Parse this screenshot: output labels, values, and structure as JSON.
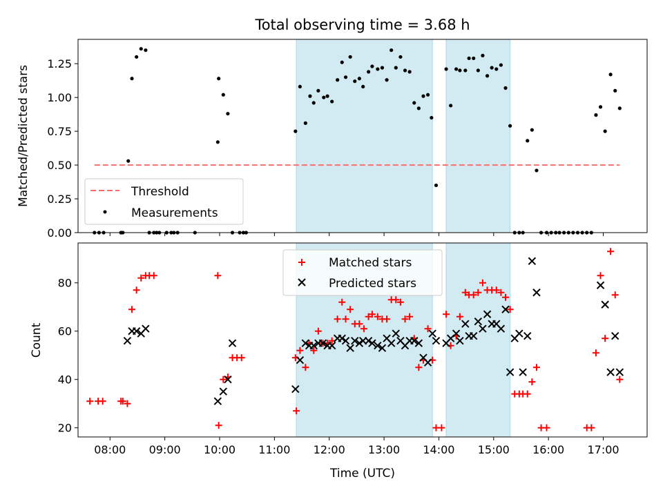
{
  "figure_title": "Total observing time = 3.68 h",
  "colors": {
    "shade": "#add8e6",
    "threshold": "#ff6b6b",
    "measurement": "#000000",
    "matched": "#ff0000",
    "predicted": "#000000"
  },
  "chart_data": [
    {
      "type": "scatter",
      "ylabel": "Matched/Predicted stars",
      "xlabel": "",
      "xlim": [
        "07:25",
        "17:48"
      ],
      "ylim": [
        0,
        1.43
      ],
      "yticks": [
        "0.00",
        "0.25",
        "0.50",
        "0.75",
        "1.00",
        "1.25"
      ],
      "grid": false,
      "legend": "bottom-left",
      "shaded_intervals": [
        [
          "11:24",
          "13:53"
        ],
        [
          "14:08",
          "15:18"
        ]
      ],
      "threshold": {
        "name": "Threshold",
        "y": 0.5,
        "x_start": "07:43",
        "x_end": "17:18",
        "style": "dashed"
      },
      "series": [
        {
          "name": "Measurements",
          "x": [
            "07:43",
            "07:48",
            "07:53",
            "08:12",
            "08:14",
            "08:20",
            "08:24",
            "08:29",
            "08:34",
            "08:39",
            "08:43",
            "08:48",
            "08:51",
            "08:54",
            "09:02",
            "09:07",
            "09:10",
            "09:14",
            "09:33",
            "09:58",
            "09:59",
            "10:04",
            "10:09",
            "10:14",
            "10:22",
            "10:26",
            "10:29",
            "11:23",
            "11:28",
            "11:34",
            "11:39",
            "11:43",
            "11:48",
            "11:54",
            "11:58",
            "12:03",
            "12:09",
            "12:14",
            "12:18",
            "12:23",
            "12:28",
            "12:33",
            "12:37",
            "12:43",
            "12:47",
            "12:53",
            "12:58",
            "13:03",
            "13:08",
            "13:13",
            "13:18",
            "13:23",
            "13:28",
            "13:33",
            "13:38",
            "13:43",
            "13:48",
            "13:52",
            "13:57",
            "14:08",
            "14:13",
            "14:19",
            "14:23",
            "14:29",
            "14:33",
            "14:38",
            "14:43",
            "14:48",
            "14:53",
            "14:58",
            "15:03",
            "15:08",
            "15:13",
            "15:18",
            "15:23",
            "15:28",
            "15:32",
            "15:37",
            "15:42",
            "15:47",
            "15:52",
            "15:58",
            "16:03",
            "16:08",
            "16:12",
            "16:17",
            "16:22",
            "16:27",
            "16:32",
            "16:37",
            "16:42",
            "16:47",
            "16:52",
            "16:57",
            "17:02",
            "17:08",
            "17:13",
            "17:18"
          ],
          "y": [
            0,
            0,
            0,
            0,
            0,
            0.53,
            1.14,
            1.3,
            1.36,
            1.35,
            0,
            0,
            0,
            0,
            0,
            0,
            0,
            0,
            0,
            0.67,
            1.14,
            1.02,
            0.88,
            0,
            0,
            0,
            0,
            0.75,
            1.08,
            0.81,
            1.01,
            0.96,
            1.05,
            1.0,
            1.01,
            0.97,
            1.13,
            1.26,
            1.15,
            1.3,
            1.12,
            1.14,
            1.08,
            1.19,
            1.23,
            1.21,
            1.22,
            1.13,
            1.35,
            1.22,
            1.3,
            1.2,
            1.19,
            0.96,
            0.92,
            1.01,
            1.02,
            0.85,
            0.35,
            1.21,
            0.94,
            1.21,
            1.2,
            1.2,
            1.29,
            1.29,
            1.2,
            1.31,
            1.16,
            1.22,
            1.21,
            1.24,
            1.07,
            0.79,
            0,
            0,
            0,
            0.68,
            0.76,
            0.46,
            0,
            0,
            0,
            0,
            0,
            0,
            0,
            0,
            0,
            0,
            0,
            0,
            0.87,
            0.93,
            0.75,
            1.17,
            1.05,
            0.92
          ]
        }
      ]
    },
    {
      "type": "scatter",
      "ylabel": "Count",
      "xlabel": "Time (UTC)",
      "xlim": [
        "07:25",
        "17:48"
      ],
      "ylim": [
        16.2,
        96.5
      ],
      "yticks": [
        "20",
        "40",
        "60",
        "80"
      ],
      "xticks": [
        "08:00",
        "09:00",
        "10:00",
        "11:00",
        "12:00",
        "13:00",
        "14:00",
        "15:00",
        "16:00",
        "17:00"
      ],
      "grid": false,
      "legend": "top-center",
      "shaded_intervals": [
        [
          "11:24",
          "13:53"
        ],
        [
          "14:08",
          "15:18"
        ]
      ],
      "series": [
        {
          "name": "Matched stars",
          "x": [
            "07:38",
            "07:47",
            "07:52",
            "08:12",
            "08:14",
            "08:19",
            "08:24",
            "08:29",
            "08:34",
            "08:39",
            "08:43",
            "08:48",
            "09:58",
            "09:59",
            "10:04",
            "10:09",
            "10:14",
            "10:19",
            "10:24",
            "11:23",
            "11:24",
            "11:28",
            "11:34",
            "11:38",
            "11:43",
            "11:48",
            "11:53",
            "11:58",
            "12:03",
            "12:09",
            "12:14",
            "12:18",
            "12:23",
            "12:28",
            "12:33",
            "12:38",
            "12:43",
            "12:47",
            "12:53",
            "12:58",
            "13:03",
            "13:08",
            "13:13",
            "13:18",
            "13:23",
            "13:28",
            "13:33",
            "13:38",
            "13:43",
            "13:48",
            "13:53",
            "13:57",
            "14:03",
            "14:08",
            "14:13",
            "14:19",
            "14:23",
            "14:29",
            "14:33",
            "14:38",
            "14:43",
            "14:48",
            "14:53",
            "14:58",
            "15:03",
            "15:08",
            "15:13",
            "15:18",
            "15:23",
            "15:28",
            "15:32",
            "15:37",
            "15:42",
            "15:47",
            "15:52",
            "15:58",
            "16:42",
            "16:47",
            "16:52",
            "16:57",
            "17:02",
            "17:08",
            "17:13",
            "17:18"
          ],
          "y": [
            31,
            31,
            31,
            31,
            31,
            30,
            69,
            77,
            82,
            83,
            83,
            83,
            83,
            21,
            40,
            41,
            49,
            49,
            49,
            49,
            27,
            52,
            45,
            55,
            52,
            60,
            55,
            55,
            56,
            65,
            72,
            65,
            69,
            63,
            63,
            61,
            66,
            67,
            66,
            65,
            65,
            73,
            73,
            72,
            65,
            66,
            57,
            45,
            48,
            61,
            48,
            20,
            20,
            67,
            54,
            58,
            66,
            76,
            75,
            75,
            76,
            80,
            77,
            77,
            77,
            76,
            74,
            69,
            34,
            34,
            34,
            34,
            39,
            45,
            20,
            20,
            20,
            20,
            51,
            83,
            57,
            93,
            75,
            40
          ]
        },
        {
          "name": "Predicted stars",
          "x": [
            "08:19",
            "08:24",
            "08:29",
            "08:34",
            "08:39",
            "09:58",
            "10:04",
            "10:09",
            "10:14",
            "11:23",
            "11:28",
            "11:34",
            "11:38",
            "11:43",
            "11:48",
            "11:53",
            "11:58",
            "12:03",
            "12:09",
            "12:14",
            "12:18",
            "12:23",
            "12:28",
            "12:33",
            "12:37",
            "12:43",
            "12:47",
            "12:53",
            "12:58",
            "13:03",
            "13:08",
            "13:13",
            "13:18",
            "13:23",
            "13:28",
            "13:33",
            "13:38",
            "13:43",
            "13:48",
            "13:53",
            "13:57",
            "14:08",
            "14:13",
            "14:19",
            "14:23",
            "14:29",
            "14:33",
            "14:38",
            "14:43",
            "14:48",
            "14:53",
            "14:58",
            "15:03",
            "15:08",
            "15:13",
            "15:18",
            "15:23",
            "15:28",
            "15:32",
            "15:37",
            "15:42",
            "15:47",
            "16:57",
            "17:02",
            "17:08",
            "17:13",
            "17:18"
          ],
          "y": [
            56,
            60,
            60,
            59,
            61,
            31,
            35,
            40,
            55,
            36,
            48,
            55,
            54,
            54,
            55,
            55,
            54,
            54,
            57,
            57,
            56,
            53,
            56,
            55,
            56,
            56,
            55,
            54,
            53,
            57,
            55,
            59,
            56,
            54,
            56,
            56,
            55,
            49,
            47,
            59,
            56,
            55,
            57,
            59,
            56,
            63,
            58,
            58,
            64,
            61,
            67,
            63,
            63,
            61,
            69,
            43,
            57,
            59,
            43,
            58,
            89,
            76,
            79,
            71,
            43,
            58,
            43
          ]
        }
      ]
    }
  ]
}
